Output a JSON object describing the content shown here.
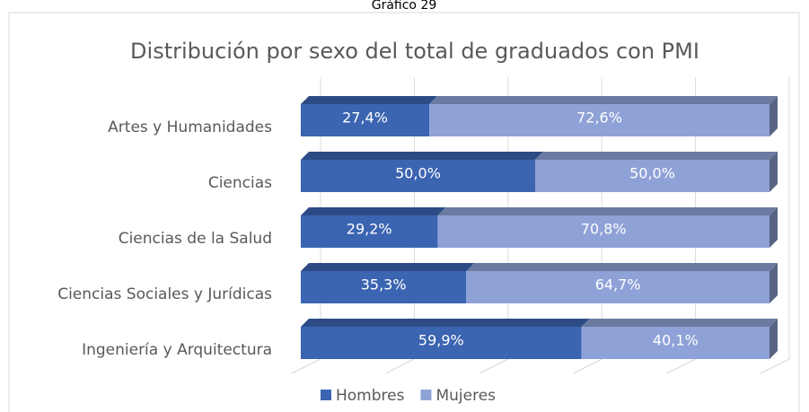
{
  "header": "Gráfico 29",
  "chart_data": {
    "type": "stacked_barh_3d",
    "title": "Distribución por sexo del total de graduados con PMI",
    "categories": [
      "Artes y Humanidades",
      "Ciencias",
      "Ciencias de la Salud",
      "Ciencias Sociales y Jurídicas",
      "Ingeniería y Arquitectura"
    ],
    "series": [
      {
        "name": "Hombres",
        "color": "#3b64b1",
        "values": [
          27.4,
          50.0,
          29.2,
          35.3,
          59.9
        ],
        "value_labels": [
          "27,4%",
          "50,0%",
          "29,2%",
          "35,3%",
          "59,9%"
        ]
      },
      {
        "name": "Mujeres",
        "color": "#8fa2d7",
        "values": [
          72.6,
          50.0,
          70.8,
          64.7,
          40.1
        ],
        "value_labels": [
          "72,6%",
          "50,0%",
          "70,8%",
          "64,7%",
          "40,1%"
        ]
      }
    ],
    "xlim": [
      0,
      100
    ],
    "xticks": [
      0,
      20,
      40,
      60,
      80,
      100
    ],
    "show_xtick_labels": false,
    "grid": true,
    "legend": "bottom"
  }
}
